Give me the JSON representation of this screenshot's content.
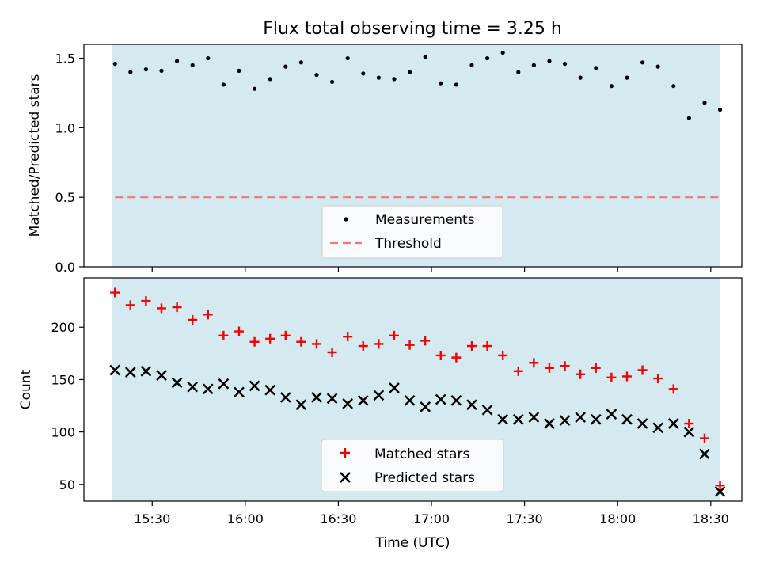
{
  "chart_data": [
    {
      "type": "scatter",
      "title": "Flux total observing time = 3.25 h",
      "ylabel": "Matched/Predicted stars",
      "ylim": [
        0,
        1.6
      ],
      "yticks": [
        0.0,
        0.5,
        1.0,
        1.5
      ],
      "grid": false,
      "legend_position": "bottom-center",
      "shaded_interval": {
        "start": "15:17",
        "end": "18:33",
        "color": "#d4eaf0"
      },
      "series": [
        {
          "name": "Measurements",
          "marker": "dot",
          "color": "#000000",
          "x": [
            "15:18",
            "15:23",
            "15:28",
            "15:33",
            "15:38",
            "15:43",
            "15:48",
            "15:53",
            "15:58",
            "16:03",
            "16:08",
            "16:13",
            "16:18",
            "16:23",
            "16:28",
            "16:33",
            "16:38",
            "16:43",
            "16:48",
            "16:53",
            "16:58",
            "17:03",
            "17:08",
            "17:13",
            "17:18",
            "17:23",
            "17:28",
            "17:33",
            "17:38",
            "17:43",
            "17:48",
            "17:53",
            "17:58",
            "18:03",
            "18:08",
            "18:13",
            "18:18",
            "18:23",
            "18:28",
            "18:33"
          ],
          "y": [
            1.46,
            1.4,
            1.42,
            1.41,
            1.48,
            1.45,
            1.5,
            1.31,
            1.41,
            1.28,
            1.35,
            1.44,
            1.47,
            1.38,
            1.33,
            1.5,
            1.39,
            1.36,
            1.35,
            1.4,
            1.51,
            1.32,
            1.31,
            1.45,
            1.5,
            1.54,
            1.4,
            1.45,
            1.48,
            1.46,
            1.36,
            1.43,
            1.3,
            1.36,
            1.47,
            1.44,
            1.3,
            1.07,
            1.18,
            1.13
          ]
        },
        {
          "name": "Threshold",
          "style": "dashed",
          "color": "#f07878",
          "x": [
            "15:18",
            "18:33"
          ],
          "y": [
            0.5,
            0.5
          ]
        }
      ]
    },
    {
      "type": "scatter",
      "xlabel": "Time (UTC)",
      "ylabel": "Count",
      "ylim": [
        34,
        247
      ],
      "yticks": [
        50,
        100,
        150,
        200
      ],
      "xticks": [
        "15:30",
        "16:00",
        "16:30",
        "17:00",
        "17:30",
        "18:00",
        "18:30"
      ],
      "xlim": [
        "15:08",
        "18:40"
      ],
      "grid": false,
      "legend_position": "bottom-center",
      "shaded_interval": {
        "start": "15:17",
        "end": "18:33",
        "color": "#d4eaf0"
      },
      "series": [
        {
          "name": "Matched stars",
          "marker": "plus",
          "color": "#ee0000",
          "x": [
            "15:18",
            "15:23",
            "15:28",
            "15:33",
            "15:38",
            "15:43",
            "15:48",
            "15:53",
            "15:58",
            "16:03",
            "16:08",
            "16:13",
            "16:18",
            "16:23",
            "16:28",
            "16:33",
            "16:38",
            "16:43",
            "16:48",
            "16:53",
            "16:58",
            "17:03",
            "17:08",
            "17:13",
            "17:18",
            "17:23",
            "17:28",
            "17:33",
            "17:38",
            "17:43",
            "17:48",
            "17:53",
            "17:58",
            "18:03",
            "18:08",
            "18:13",
            "18:18",
            "18:23",
            "18:28",
            "18:33"
          ],
          "y": [
            233,
            221,
            225,
            218,
            219,
            207,
            212,
            192,
            196,
            186,
            189,
            192,
            186,
            184,
            176,
            191,
            182,
            184,
            192,
            183,
            187,
            173,
            171,
            182,
            182,
            173,
            158,
            166,
            161,
            163,
            155,
            161,
            152,
            153,
            159,
            151,
            141,
            108,
            94,
            49
          ]
        },
        {
          "name": "Predicted stars",
          "marker": "x",
          "color": "#000000",
          "x": [
            "15:18",
            "15:23",
            "15:28",
            "15:33",
            "15:38",
            "15:43",
            "15:48",
            "15:53",
            "15:58",
            "16:03",
            "16:08",
            "16:13",
            "16:18",
            "16:23",
            "16:28",
            "16:33",
            "16:38",
            "16:43",
            "16:48",
            "16:53",
            "16:58",
            "17:03",
            "17:08",
            "17:13",
            "17:18",
            "17:23",
            "17:28",
            "17:33",
            "17:38",
            "17:43",
            "17:48",
            "17:53",
            "17:58",
            "18:03",
            "18:08",
            "18:13",
            "18:18",
            "18:23",
            "18:28",
            "18:33"
          ],
          "y": [
            159,
            157,
            158,
            154,
            147,
            143,
            141,
            146,
            138,
            144,
            140,
            133,
            126,
            133,
            132,
            127,
            130,
            135,
            142,
            130,
            124,
            131,
            130,
            126,
            121,
            112,
            112,
            114,
            108,
            111,
            114,
            112,
            117,
            112,
            108,
            104,
            108,
            100,
            79,
            43
          ]
        }
      ]
    }
  ]
}
